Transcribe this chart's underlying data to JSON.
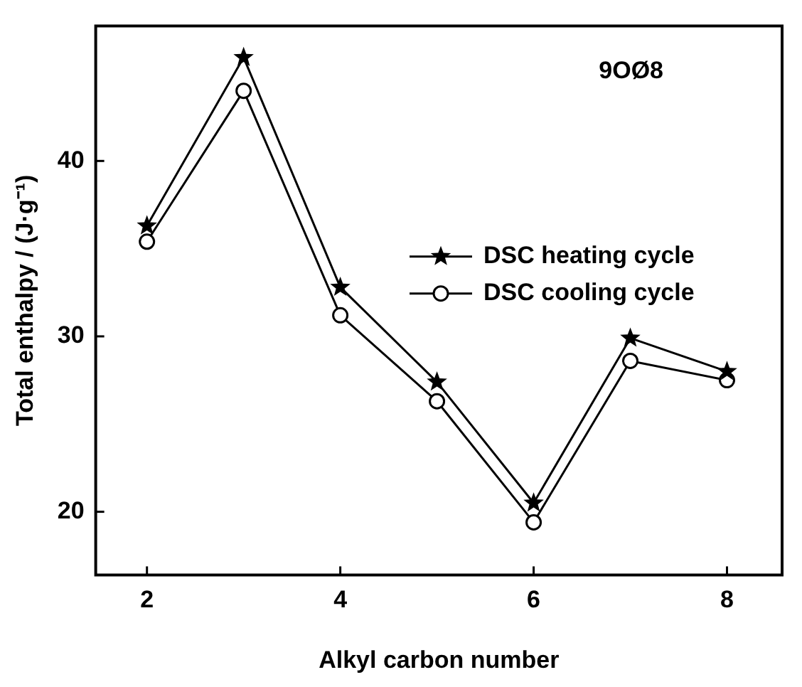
{
  "chart_data": {
    "type": "line",
    "xlabel": "Alkyl carbon number",
    "ylabel": "Total enthalpy / (J·g⁻¹)",
    "annotations": [
      "9OØ8"
    ],
    "x": [
      2,
      3,
      4,
      5,
      6,
      7,
      8
    ],
    "series": [
      {
        "name": "DSC heating cycle",
        "color": "#000000",
        "marker": "star",
        "values": [
          36.3,
          45.9,
          32.8,
          27.4,
          20.5,
          29.9,
          28.0
        ]
      },
      {
        "name": "DSC cooling cycle",
        "color": "#000000",
        "marker": "circle",
        "values": [
          35.4,
          44.0,
          31.2,
          26.3,
          19.4,
          28.6,
          27.5
        ]
      }
    ],
    "xlim": [
      1.47,
      8.57
    ],
    "xticks": [
      2,
      4,
      6,
      8
    ],
    "ylim": [
      16.4,
      47.7
    ],
    "yticks": [
      20,
      30,
      40
    ],
    "grid": false,
    "legend": "right",
    "line_style": "solid"
  }
}
